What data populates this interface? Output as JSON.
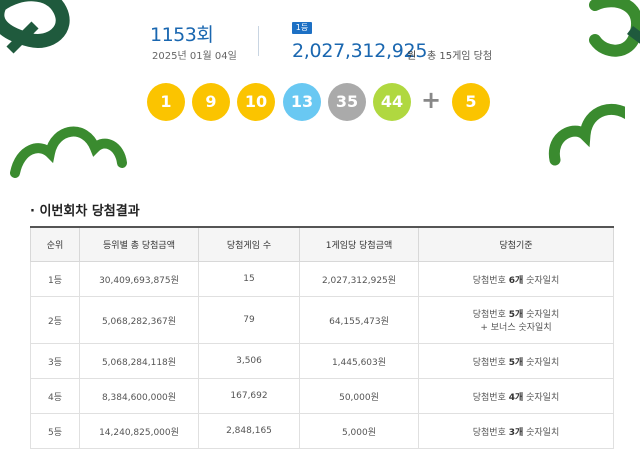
{
  "draw": {
    "round": "1153회",
    "date": "2025년 01월 04일",
    "rank_badge": "1등",
    "first_prize_amount": "2,027,312,925",
    "first_prize_unit": "원",
    "first_prize_winners": "총 15게임 당첨",
    "numbers": [
      "1",
      "9",
      "10",
      "13",
      "35",
      "44"
    ],
    "plus": "+",
    "bonus": "5",
    "ball_colors": [
      "#fbc400",
      "#fbc400",
      "#fbc400",
      "#69c8f2",
      "#aaaaaa",
      "#b0d840"
    ],
    "bonus_color": "#fbc400"
  },
  "results": {
    "title": "이번회차 당첨결과",
    "headers": [
      "순위",
      "등위별 총 당첨금액",
      "당첨게임 수",
      "1게임당 당첨금액",
      "당첨기준"
    ],
    "rows": [
      {
        "rank": "1등",
        "total": "30,409,693,875원",
        "games": "15",
        "per_game": "2,027,312,925원",
        "criteria_pre": "당첨번호 ",
        "criteria_hl": "6개",
        "criteria_post": " 숫자일치",
        "criteria_line2": ""
      },
      {
        "rank": "2등",
        "total": "5,068,282,367원",
        "games": "79",
        "per_game": "64,155,473원",
        "criteria_pre": "당첨번호 ",
        "criteria_hl": "5개",
        "criteria_post": " 숫자일치",
        "criteria_line2": "+ 보너스 숫자일치"
      },
      {
        "rank": "3등",
        "total": "5,068,284,118원",
        "games": "3,506",
        "per_game": "1,445,603원",
        "criteria_pre": "당첨번호 ",
        "criteria_hl": "5개",
        "criteria_post": " 숫자일치",
        "criteria_line2": ""
      },
      {
        "rank": "4등",
        "total": "8,384,600,000원",
        "games": "167,692",
        "per_game": "50,000원",
        "criteria_pre": "당첨번호 ",
        "criteria_hl": "4개",
        "criteria_post": " 숫자일치",
        "criteria_line2": ""
      },
      {
        "rank": "5등",
        "total": "14,240,825,000원",
        "games": "2,848,165",
        "per_game": "5,000원",
        "criteria_pre": "당첨번호 ",
        "criteria_hl": "3개",
        "criteria_post": " 숫자일치",
        "criteria_line2": ""
      }
    ]
  },
  "theme": {
    "accent_blue": "#1a67b0",
    "badge_blue": "#1d70c4",
    "deco_green": "#3a8b2f",
    "deco_dark_green": "#1f5a3d"
  }
}
